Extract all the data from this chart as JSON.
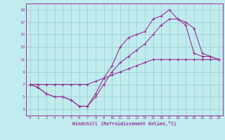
{
  "xlabel": "Windchill (Refroidissement éolien,°C)",
  "xlim": [
    -0.5,
    23.5
  ],
  "ylim": [
    2,
    20
  ],
  "xticks": [
    0,
    1,
    2,
    3,
    4,
    5,
    6,
    7,
    8,
    9,
    10,
    11,
    12,
    13,
    14,
    15,
    16,
    17,
    18,
    19,
    20,
    21,
    22,
    23
  ],
  "yticks": [
    3,
    5,
    7,
    9,
    11,
    13,
    15,
    17,
    19
  ],
  "bg_color": "#c0ecee",
  "line_color": "#993399",
  "grid_color": "#99cccc",
  "line1_x": [
    0,
    1,
    2,
    3,
    4,
    5,
    6,
    7,
    8,
    9,
    10,
    11,
    12,
    13,
    14,
    15,
    16,
    17,
    18,
    19,
    20,
    21,
    22,
    23
  ],
  "line1_y": [
    7,
    6.5,
    5.5,
    5,
    5,
    4.5,
    3.5,
    3.5,
    5.5,
    8,
    10,
    13,
    14.5,
    15,
    15.5,
    17.5,
    18,
    19,
    17.5,
    16.5,
    12,
    11.5,
    11.5,
    11
  ],
  "line2_x": [
    0,
    1,
    2,
    3,
    4,
    5,
    6,
    7,
    8,
    9,
    10,
    11,
    12,
    13,
    14,
    15,
    16,
    17,
    18,
    19,
    20,
    21,
    22,
    23
  ],
  "line2_y": [
    7,
    6.5,
    5.5,
    5,
    5,
    4.5,
    3.5,
    3.5,
    5,
    7,
    9,
    10.5,
    11.5,
    12.5,
    13.5,
    15,
    16.5,
    17.5,
    17.5,
    17,
    16,
    12,
    11.5,
    11
  ],
  "line3_x": [
    0,
    1,
    2,
    3,
    4,
    5,
    6,
    7,
    8,
    9,
    10,
    11,
    12,
    13,
    14,
    15,
    16,
    17,
    18,
    19,
    20,
    21,
    22,
    23
  ],
  "line3_y": [
    7,
    7,
    7,
    7,
    7,
    7,
    7,
    7,
    7.5,
    8,
    8.5,
    9,
    9.5,
    10,
    10.5,
    11,
    11,
    11,
    11,
    11,
    11,
    11,
    11,
    11
  ]
}
